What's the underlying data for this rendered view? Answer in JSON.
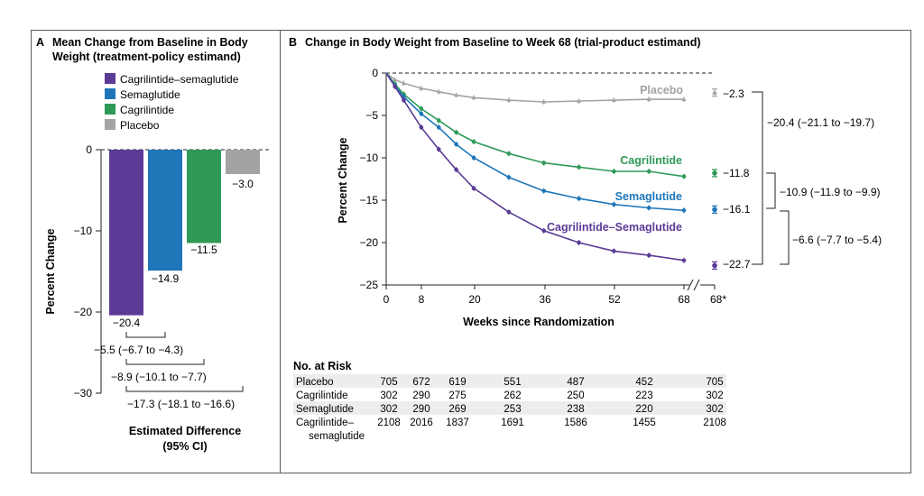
{
  "colors": {
    "cagrisema": "#5b3b95",
    "semaglutide": "#1f77b9",
    "cagrilintide": "#2f9a57",
    "placebo": "#a3a3a3",
    "axis": "#231f20"
  },
  "panel_a": {
    "letter": "A",
    "title_line1": "Mean Change from Baseline in Body",
    "title_line2": "Weight (treatment-policy estimand)",
    "ylabel": "Percent Change",
    "yticks": [
      "0",
      "−10",
      "−20",
      "−30"
    ],
    "legend": [
      {
        "label": "Cagrilintide–semaglutide",
        "key": "cagrisema"
      },
      {
        "label": "Semaglutide",
        "key": "semaglutide"
      },
      {
        "label": "Cagrilintide",
        "key": "cagrilintide"
      },
      {
        "label": "Placebo",
        "key": "placebo"
      }
    ],
    "bar_labels": [
      "−20.4",
      "−14.9",
      "−11.5",
      "−3.0"
    ],
    "differences": [
      "−5.5 (−6.7 to −4.3)",
      "−8.9 (−10.1 to −7.7)",
      "−17.3 (−18.1 to −16.6)"
    ],
    "footer_line1": "Estimated Difference",
    "footer_line2": "(95% CI)"
  },
  "panel_b": {
    "letter": "B",
    "title": "Change in Body Weight from Baseline to Week 68 (trial-product estimand)",
    "ylabel": "Percent Change",
    "xlabel": "Weeks since Randomization",
    "xtick_labels": [
      "0",
      "8",
      "20",
      "36",
      "52",
      "68",
      "68*"
    ],
    "ytick_labels": [
      "0",
      "−5",
      "−10",
      "−15",
      "−20",
      "−25"
    ],
    "series_labels": [
      "Placebo",
      "Cagrilintide",
      "Semaglutide",
      "Cagrilintide–Semaglutide"
    ],
    "endpoint_labels": [
      "−2.3",
      "−11.8",
      "−16.1",
      "−22.7"
    ],
    "comparisons": [
      "−20.4 (−21.1 to −19.7)",
      "−10.9 (−11.9 to −9.9)",
      "−6.6 (−7.7 to −5.4)"
    ]
  },
  "risk_table": {
    "title": "No. at Risk",
    "rows": [
      {
        "label": "Placebo",
        "label2": "",
        "values": [
          "705",
          "672",
          "619",
          "551",
          "487",
          "452",
          "705"
        ]
      },
      {
        "label": "Cagrilintide",
        "label2": "",
        "values": [
          "302",
          "290",
          "275",
          "262",
          "250",
          "223",
          "302"
        ]
      },
      {
        "label": "Semaglutide",
        "label2": "",
        "values": [
          "302",
          "290",
          "269",
          "253",
          "238",
          "220",
          "302"
        ]
      },
      {
        "label": "Cagrilintide–",
        "label2": "semaglutide",
        "values": [
          "2108",
          "2016",
          "1837",
          "1691",
          "1586",
          "1455",
          "2108"
        ]
      }
    ]
  },
  "chart_data": [
    {
      "type": "bar",
      "title": "Mean Change from Baseline in Body Weight (treatment-policy estimand)",
      "ylabel": "Percent Change",
      "categories": [
        "Cagrilintide–semaglutide",
        "Semaglutide",
        "Cagrilintide",
        "Placebo"
      ],
      "values": [
        -20.4,
        -14.9,
        -11.5,
        -3.0
      ],
      "ylim": [
        -30,
        0
      ],
      "yticks": [
        0,
        -10,
        -20,
        -30
      ],
      "estimated_differences": [
        {
          "comparison": [
            "Cagrilintide–semaglutide",
            "Semaglutide"
          ],
          "value": -5.5,
          "ci": [
            -6.7,
            -4.3
          ]
        },
        {
          "comparison": [
            "Cagrilintide–semaglutide",
            "Cagrilintide"
          ],
          "value": -8.9,
          "ci": [
            -10.1,
            -7.7
          ]
        },
        {
          "comparison": [
            "Cagrilintide–semaglutide",
            "Placebo"
          ],
          "value": -17.3,
          "ci": [
            -18.1,
            -16.6
          ]
        }
      ]
    },
    {
      "type": "line",
      "title": "Change in Body Weight from Baseline to Week 68 (trial-product estimand)",
      "xlabel": "Weeks since Randomization",
      "ylabel": "Percent Change",
      "xticks": [
        0,
        8,
        20,
        36,
        52,
        68
      ],
      "ylim": [
        -25,
        0
      ],
      "xlim": [
        0,
        68
      ],
      "x": [
        0,
        2,
        4,
        8,
        12,
        16,
        20,
        28,
        36,
        44,
        52,
        60,
        68
      ],
      "series": [
        {
          "name": "Placebo",
          "key": "placebo",
          "values": [
            0,
            -0.8,
            -1.2,
            -1.8,
            -2.2,
            -2.6,
            -2.9,
            -3.2,
            -3.4,
            -3.3,
            -3.2,
            -3.1,
            -3.1
          ],
          "endpoint_68_star": -2.3
        },
        {
          "name": "Cagrilintide",
          "key": "cagrilintide",
          "values": [
            0,
            -1.3,
            -2.5,
            -4.2,
            -5.6,
            -7.0,
            -8.1,
            -9.5,
            -10.6,
            -11.1,
            -11.6,
            -11.6,
            -12.2
          ],
          "endpoint_68_star": -11.8
        },
        {
          "name": "Semaglutide",
          "key": "semaglutide",
          "values": [
            0,
            -1.5,
            -2.8,
            -4.8,
            -6.4,
            -8.4,
            -10.0,
            -12.3,
            -13.9,
            -14.8,
            -15.5,
            -15.9,
            -16.2
          ],
          "endpoint_68_star": -16.1
        },
        {
          "name": "Cagrilintide–Semaglutide",
          "key": "cagrisema",
          "values": [
            0,
            -1.6,
            -3.2,
            -6.4,
            -9.0,
            -11.4,
            -13.6,
            -16.4,
            -18.6,
            -20.0,
            -21.0,
            -21.5,
            -22.1
          ],
          "endpoint_68_star": -22.7
        }
      ],
      "comparisons_at_68_star": [
        {
          "value": -20.4,
          "ci": [
            -21.1,
            -19.7
          ]
        },
        {
          "value": -10.9,
          "ci": [
            -11.9,
            -9.9
          ]
        },
        {
          "value": -6.6,
          "ci": [
            -7.7,
            -5.4
          ]
        }
      ]
    }
  ]
}
